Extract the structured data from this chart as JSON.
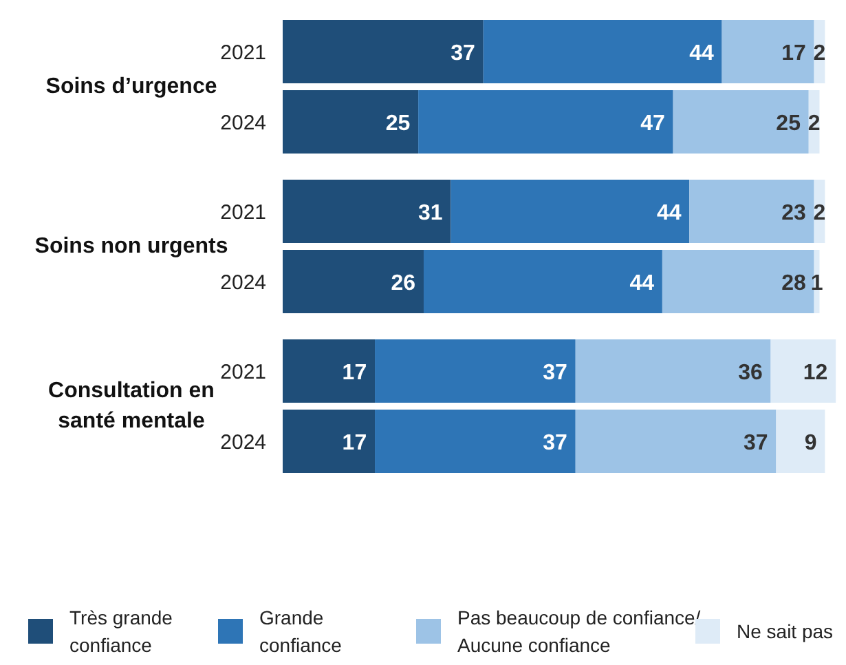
{
  "chart_data": {
    "type": "bar",
    "orientation": "horizontal",
    "stacked": true,
    "data_labels": true,
    "legend": "bottom",
    "categories": [
      "2021",
      "2024",
      "2021",
      "2024",
      "2021",
      "2024"
    ],
    "annotations": [
      "Soins d’urgence",
      "Soins non urgents",
      "Consultation en santé mentale"
    ],
    "series": [
      {
        "name": "Très grande confiance",
        "color": "#1f4e79",
        "values": [
          37,
          25,
          31,
          26,
          17,
          17
        ]
      },
      {
        "name": "Grande confiance",
        "color": "#2e75b6",
        "values": [
          44,
          47,
          44,
          44,
          37,
          37
        ]
      },
      {
        "name": "Pas beaucoup de confiance/ Aucune confiance",
        "color": "#9dc3e6",
        "values": [
          17,
          25,
          23,
          28,
          36,
          37
        ]
      },
      {
        "name": "Ne sait pas",
        "color": "#deebf7",
        "values": [
          2,
          2,
          2,
          1,
          12,
          9
        ]
      }
    ]
  }
}
